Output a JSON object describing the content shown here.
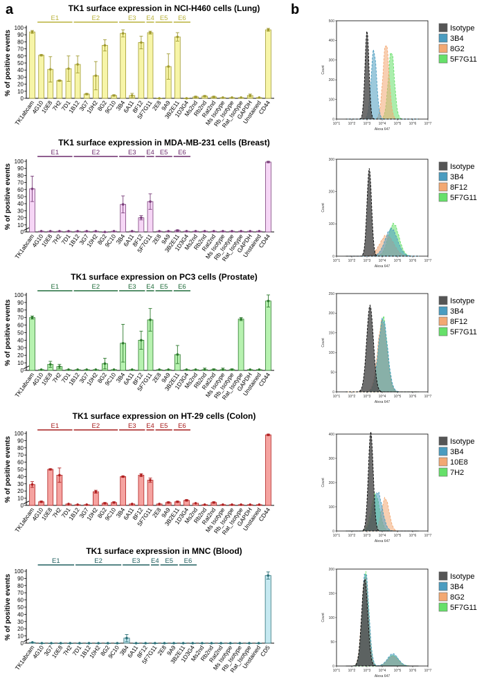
{
  "panel_labels": {
    "a": "a",
    "b": "b"
  },
  "chart_data": [
    {
      "type": "bar",
      "title": "TK1 surface expression in NCI-H460 cells (Lung)",
      "ylabel": "% of positive events",
      "ylim": [
        0,
        100
      ],
      "yticks": [
        0,
        10,
        20,
        30,
        40,
        50,
        60,
        70,
        80,
        90,
        100
      ],
      "categories": [
        "TK1abcam",
        "4G10",
        "10E8",
        "7H2",
        "7D1",
        "1B12",
        "3G7",
        "10H2",
        "8G2",
        "9C10",
        "3B4",
        "6A11",
        "8F12",
        "5F7G11",
        "2E8",
        "9A9",
        "3B2E11",
        "1D3G4",
        "Ms2nd",
        "Rb2nd",
        "Rat2nd",
        "Ms Isotype",
        "Rb_Isotype",
        "Rat_Isotype",
        "GAPDH",
        "Unstained",
        "CD44"
      ],
      "values": [
        94,
        61,
        41,
        25,
        42,
        48,
        6,
        32,
        75,
        4,
        92,
        4,
        79,
        93,
        0,
        45,
        87,
        0,
        2,
        3,
        2,
        1,
        1,
        1,
        4,
        1,
        97
      ],
      "errors": [
        2,
        1,
        18,
        1,
        18,
        12,
        1,
        20,
        8,
        1,
        5,
        3,
        9,
        2,
        0,
        18,
        6,
        0,
        1,
        1,
        1,
        0,
        0,
        0,
        2,
        0,
        2
      ],
      "groups": [
        {
          "name": "E1",
          "start": 1,
          "end": 4
        },
        {
          "name": "E2",
          "start": 5,
          "end": 9
        },
        {
          "name": "E3",
          "start": 10,
          "end": 12
        },
        {
          "name": "E4",
          "start": 13,
          "end": 13
        },
        {
          "name": "E5",
          "start": 14,
          "end": 15
        },
        {
          "name": "E6",
          "start": 16,
          "end": 17
        }
      ],
      "color": "#f7f5a8",
      "stroke": "#a09a30",
      "group_color": "#b9b23a",
      "ytick_break": false
    },
    {
      "type": "bar",
      "title": "TK1 surface expression in MDA-MB-231 cells (Breast)",
      "ylabel": "% of positive events",
      "ylim": [
        0,
        100
      ],
      "yticks": [
        0,
        10,
        20,
        30,
        40,
        50,
        60,
        70,
        80,
        90,
        100
      ],
      "categories": [
        "TK1abcam",
        "4G10",
        "10E8",
        "7H2",
        "7D1",
        "1B12",
        "3G7",
        "10H2",
        "8G2",
        "9C10",
        "3B4",
        "6A11",
        "8F12",
        "5F7G11",
        "2E8",
        "9A9",
        "3B2E11",
        "1D3G4",
        "Ms2nd",
        "Rb2nd",
        "Rat2nd",
        "Ms Isotype",
        "Rb_Isotype",
        "Rat_Isotype",
        "GAPDH",
        "Unstained",
        "CD44"
      ],
      "values": [
        61,
        1,
        1,
        1,
        1,
        1,
        1,
        1,
        0,
        1,
        39,
        1,
        20,
        43,
        1,
        1,
        2,
        1,
        1,
        1,
        1,
        1,
        1,
        1,
        1,
        1,
        99
      ],
      "errors": [
        18,
        0,
        0,
        0,
        0,
        0,
        0,
        0,
        0,
        0,
        12,
        0,
        3,
        11,
        0,
        0,
        1,
        0,
        0,
        0,
        0,
        0,
        0,
        0,
        0,
        0,
        1
      ],
      "groups": [
        {
          "name": "E1",
          "start": 1,
          "end": 4
        },
        {
          "name": "E2",
          "start": 5,
          "end": 9
        },
        {
          "name": "E3",
          "start": 10,
          "end": 12
        },
        {
          "name": "E4",
          "start": 13,
          "end": 13
        },
        {
          "name": "E5",
          "start": 14,
          "end": 15
        },
        {
          "name": "E6",
          "start": 16,
          "end": 17
        }
      ],
      "color": "#f6d6f6",
      "stroke": "#7a3f7a",
      "group_color": "#6b2a6b",
      "ytick_break": true
    },
    {
      "type": "bar",
      "title": "TK1 surface expression on PC3 cells (Prostate)",
      "ylabel": "% of positive events",
      "ylim": [
        0,
        100
      ],
      "yticks": [
        0,
        10,
        20,
        30,
        40,
        50,
        60,
        70,
        80,
        90,
        100
      ],
      "categories": [
        "TK1abcam",
        "4G10",
        "10E8",
        "7H2",
        "7D1",
        "1B12",
        "3G7",
        "10H2",
        "8G2",
        "9C10",
        "3B4",
        "6A11",
        "8F12",
        "5F7G11",
        "2E8",
        "9A9",
        "3B2E11",
        "1D3G4",
        "Ms2nd",
        "Rb2nd",
        "Rat2nd",
        "Ms Isotype",
        "Rb_Isotype",
        "Rat_Isotype",
        "GAPDH",
        "Unstained",
        "CD44"
      ],
      "values": [
        70,
        1,
        8,
        5,
        1,
        1,
        1,
        1,
        9,
        1,
        36,
        1,
        40,
        67,
        1,
        1,
        21,
        1,
        1,
        1,
        1,
        1,
        1,
        68,
        1,
        1,
        92
      ],
      "errors": [
        2,
        0,
        4,
        3,
        0,
        0,
        0,
        0,
        7,
        0,
        25,
        0,
        12,
        15,
        0,
        0,
        12,
        0,
        0,
        2,
        1,
        2,
        1,
        2,
        0,
        0,
        8
      ],
      "groups": [
        {
          "name": "E1",
          "start": 1,
          "end": 4
        },
        {
          "name": "E2",
          "start": 5,
          "end": 9
        },
        {
          "name": "E3",
          "start": 10,
          "end": 12
        },
        {
          "name": "E4",
          "start": 13,
          "end": 13
        },
        {
          "name": "E5",
          "start": 14,
          "end": 15
        },
        {
          "name": "E6",
          "start": 16,
          "end": 17
        }
      ],
      "color": "#b7f2b0",
      "stroke": "#2d7a2d",
      "group_color": "#1f6b3a",
      "ytick_break": true
    },
    {
      "type": "bar",
      "title": "TK1 surface expression on HT-29 cells (Colon)",
      "ylabel": "% of positive events",
      "ylim": [
        0,
        100
      ],
      "yticks": [
        0,
        10,
        20,
        30,
        40,
        50,
        60,
        70,
        80,
        90,
        100
      ],
      "categories": [
        "TK1abcam",
        "4G10",
        "10E8",
        "7H2",
        "7D1",
        "1B12",
        "3G7",
        "10H2",
        "8G2",
        "9C10",
        "3B4",
        "6A11",
        "8F12",
        "5F7G11",
        "2E8",
        "9A9",
        "3B2E11",
        "1D3G4",
        "Ms2nd",
        "Rb2nd",
        "Rat2nd",
        "Ms Isotype",
        "Rb_Isotype",
        "Rat_Isotype",
        "GAPDH",
        "Unstained",
        "CD44"
      ],
      "values": [
        29,
        5,
        50,
        42,
        2,
        1,
        1,
        19,
        3,
        4,
        40,
        2,
        42,
        35,
        2,
        4,
        5,
        7,
        3,
        1,
        4,
        1,
        1,
        1,
        1,
        1,
        98
      ],
      "errors": [
        4,
        1,
        1,
        10,
        0,
        0,
        0,
        2,
        1,
        1,
        1,
        0,
        2,
        3,
        0,
        1,
        1,
        1,
        0,
        0,
        1,
        0,
        0,
        0,
        0,
        0,
        1
      ],
      "groups": [
        {
          "name": "E1",
          "start": 1,
          "end": 4
        },
        {
          "name": "E2",
          "start": 5,
          "end": 9
        },
        {
          "name": "E3",
          "start": 10,
          "end": 12
        },
        {
          "name": "E4",
          "start": 13,
          "end": 13
        },
        {
          "name": "E5",
          "start": 14,
          "end": 15
        },
        {
          "name": "E6",
          "start": 16,
          "end": 17
        }
      ],
      "color": "#f5a3a0",
      "stroke": "#b02020",
      "group_color": "#a61b1b",
      "ytick_break": true
    },
    {
      "type": "bar",
      "title": "TK1 surface expression in MNC (Blood)",
      "ylabel": "% of positive events",
      "ylim": [
        0,
        100
      ],
      "yticks": [
        0,
        10,
        20,
        30,
        40,
        50,
        60,
        70,
        80,
        90,
        100
      ],
      "categories": [
        "TK1abcam",
        "4G10",
        "3G7",
        "10E8",
        "7H2",
        "7D1",
        "1B12",
        "10H2",
        "8G2",
        "9C10",
        "3B4",
        "6A11",
        "8F12",
        "5F7G11",
        "2E8",
        "9A9",
        "3B2E11",
        "1D3G4",
        "Ms2nd",
        "Rb2nd",
        "Rat2nd",
        "Ms Isotype",
        "Rb_Isotype",
        "Rat_Isotype",
        "Unstained",
        "CD5"
      ],
      "values": [
        1,
        0,
        0,
        0,
        0,
        0,
        0,
        0,
        0,
        0,
        7,
        0,
        0,
        0,
        0,
        0,
        0,
        0,
        0,
        0,
        0,
        0,
        0,
        0,
        0,
        94
      ],
      "errors": [
        0,
        0,
        0,
        0,
        0,
        0,
        0,
        0,
        0,
        0,
        5,
        0,
        0,
        0,
        0,
        0,
        0,
        0,
        0,
        0,
        0,
        0,
        0,
        0,
        0,
        5
      ],
      "groups": [
        {
          "name": "E1",
          "start": 1,
          "end": 4
        },
        {
          "name": "E2",
          "start": 5,
          "end": 9
        },
        {
          "name": "E3",
          "start": 10,
          "end": 12
        },
        {
          "name": "E4",
          "start": 13,
          "end": 13
        },
        {
          "name": "E5",
          "start": 14,
          "end": 15
        },
        {
          "name": "E6",
          "start": 16,
          "end": 17
        }
      ],
      "color": "#c6e9f1",
      "stroke": "#2b6f77",
      "group_color": "#1f5f5f",
      "ytick_break": true
    }
  ],
  "histograms": [
    {
      "ylabel": "Count",
      "xlabel": "Alexa 647",
      "ymax": 500,
      "yticks": [
        0,
        100,
        200,
        300,
        400,
        500
      ],
      "xticks": [
        "10^1",
        "10^2",
        "10^3",
        "10^4",
        "10^5",
        "10^6",
        "10^7"
      ],
      "legend": [
        {
          "name": "Isotype",
          "color": "#555555",
          "mean": 3.0,
          "sd": 0.13,
          "peak": 450
        },
        {
          "name": "3B4",
          "color": "#4a9cc0",
          "mean": 3.45,
          "sd": 0.18,
          "peak": 350
        },
        {
          "name": "8G2",
          "color": "#f3a872",
          "mean": 4.25,
          "sd": 0.2,
          "peak": 385
        },
        {
          "name": "5F7G11",
          "color": "#66e06a",
          "mean": 4.6,
          "sd": 0.2,
          "peak": 345
        }
      ]
    },
    {
      "ylabel": "Count",
      "xlabel": "Alexa 647",
      "ymax": 300,
      "yticks": [
        0,
        100,
        200,
        300
      ],
      "xticks": [
        "10^1",
        "10^2",
        "10^3",
        "10^4",
        "10^5",
        "10^6",
        "10^7"
      ],
      "legend": [
        {
          "name": "Isotype",
          "color": "#555555",
          "mean": 3.15,
          "sd": 0.15,
          "peak": 272
        },
        {
          "name": "3B4",
          "color": "#4a9cc0",
          "mean": 4.6,
          "sd": 0.4,
          "peak": 85
        },
        {
          "name": "8F12",
          "color": "#f3a872",
          "mean": 4.3,
          "sd": 0.45,
          "peak": 65
        },
        {
          "name": "5F7G11",
          "color": "#66e06a",
          "mean": 4.75,
          "sd": 0.35,
          "peak": 100
        }
      ]
    },
    {
      "ylabel": "Count",
      "xlabel": "Alexa 647",
      "ymax": 250,
      "yticks": [
        0,
        50,
        100,
        150,
        200,
        250
      ],
      "xticks": [
        "10^1",
        "10^2",
        "10^3",
        "10^4",
        "10^5",
        "10^6",
        "10^7"
      ],
      "legend": [
        {
          "name": "Isotype",
          "color": "#555555",
          "mean": 3.2,
          "sd": 0.22,
          "peak": 220
        },
        {
          "name": "3B4",
          "color": "#4a9cc0",
          "mean": 4.05,
          "sd": 0.3,
          "peak": 185
        },
        {
          "name": "8F12",
          "color": "#f3a872",
          "mean": 4.0,
          "sd": 0.3,
          "peak": 180
        },
        {
          "name": "5F7G11",
          "color": "#66e06a",
          "mean": 4.05,
          "sd": 0.28,
          "peak": 190
        }
      ]
    },
    {
      "ylabel": "Count",
      "xlabel": "Alexa 647",
      "ymax": 400,
      "yticks": [
        0,
        100,
        200,
        300,
        400
      ],
      "xticks": [
        "10^1",
        "10^2",
        "10^3",
        "10^4",
        "10^5",
        "10^6",
        "10^7"
      ],
      "legend": [
        {
          "name": "Isotype",
          "color": "#555555",
          "mean": 3.25,
          "sd": 0.16,
          "peak": 410
        },
        {
          "name": "3B4",
          "color": "#4a9cc0",
          "mean": 3.7,
          "sd": 0.3,
          "peak": 160
        },
        {
          "name": "10E8",
          "color": "#f3a872",
          "mean": 4.2,
          "sd": 0.25,
          "peak": 135
        },
        {
          "name": "7H2",
          "color": "#66e06a",
          "mean": 3.55,
          "sd": 0.28,
          "peak": 150
        }
      ]
    },
    {
      "ylabel": "Count",
      "xlabel": "Alexa 647",
      "ymax": 200,
      "yticks": [
        0,
        50,
        100,
        150,
        200
      ],
      "xticks": [
        "10^1",
        "10^2",
        "10^3",
        "10^4",
        "10^5",
        "10^6",
        "10^7"
      ],
      "legend": [
        {
          "name": "Isotype",
          "color": "#555555",
          "mean": 2.85,
          "sd": 0.2,
          "peak": 180
        },
        {
          "name": "3B4",
          "color": "#4a9cc0",
          "mean": 2.9,
          "sd": 0.22,
          "peak": 195,
          "bump": 25
        },
        {
          "name": "8G2",
          "color": "#f3a872",
          "mean": 2.88,
          "sd": 0.22,
          "peak": 185,
          "bump": 20
        },
        {
          "name": "5F7G11",
          "color": "#66e06a",
          "mean": 2.9,
          "sd": 0.22,
          "peak": 190,
          "bump": 22
        }
      ]
    }
  ]
}
